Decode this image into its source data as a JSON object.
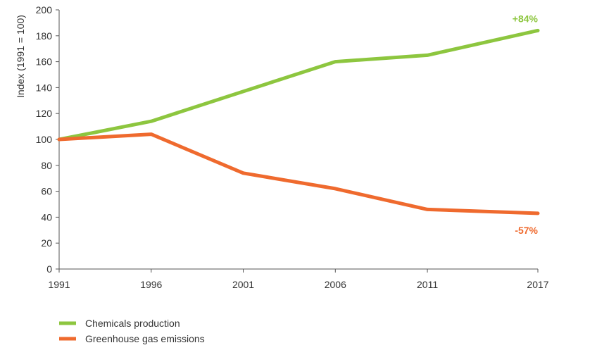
{
  "chart_data": {
    "type": "line",
    "title": "",
    "xlabel": "",
    "ylabel": "Index (1991 = 100)",
    "ylim": [
      0,
      200
    ],
    "yticks": [
      0,
      20,
      40,
      60,
      80,
      100,
      120,
      140,
      160,
      180,
      200
    ],
    "categories": [
      "1991",
      "1996",
      "2001",
      "2006",
      "2011",
      "2017"
    ],
    "x": [
      1991,
      1996,
      2001,
      2006,
      2011,
      2017
    ],
    "grid": false,
    "legend_position": "bottom-left",
    "series": [
      {
        "name": "Chemicals production",
        "color": "#8DC63F",
        "values": [
          100,
          114,
          137,
          160,
          165,
          184
        ],
        "end_label": "+84%"
      },
      {
        "name": "Greenhouse gas emissions",
        "color": "#EF6A2E",
        "values": [
          100,
          104,
          74,
          62,
          46,
          43
        ],
        "end_label": "-57%"
      }
    ]
  }
}
